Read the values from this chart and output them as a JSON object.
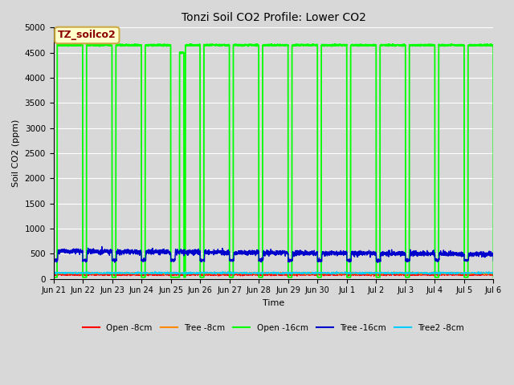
{
  "title": "Tonzi Soil CO2 Profile: Lower CO2",
  "xlabel": "Time",
  "ylabel": "Soil CO2 (ppm)",
  "ylim": [
    0,
    5000
  ],
  "yticks": [
    0,
    500,
    1000,
    1500,
    2000,
    2500,
    3000,
    3500,
    4000,
    4500,
    5000
  ],
  "legend_title": "TZ_soilco2",
  "legend_title_color": "#8b0000",
  "legend_box_facecolor": "#ffffcc",
  "legend_box_edgecolor": "#ccaa44",
  "series_colors": {
    "open8": "#ff0000",
    "tree8": "#ff8800",
    "open16": "#00ff00",
    "tree16": "#0000cc",
    "tree2_8": "#00ccff"
  },
  "series_labels": {
    "open8": "Open -8cm",
    "tree8": "Tree -8cm",
    "open16": "Open -16cm",
    "tree16": "Tree -16cm",
    "tree2_8": "Tree2 -8cm"
  },
  "tick_labels": [
    "Jun 21",
    "Jun 22",
    "Jun 23",
    "Jun 24",
    "Jun 25",
    "Jun 26",
    "Jun 27",
    "Jun 28",
    "Jun 29",
    "Jun 30",
    "Jul 1",
    "Jul 2",
    "Jul 3",
    "Jul 4",
    "Jul 5",
    "Jul 6"
  ],
  "open16_high": 4650,
  "open16_low": 30,
  "tree16_base": 550,
  "tree16_dip": 370,
  "open8_base": 80,
  "tree8_base": 110,
  "tree2_8_base": 115,
  "fig_bg_color": "#d8d8d8",
  "plot_bg_color": "#d8d8d8",
  "grid_color": "#ffffff"
}
